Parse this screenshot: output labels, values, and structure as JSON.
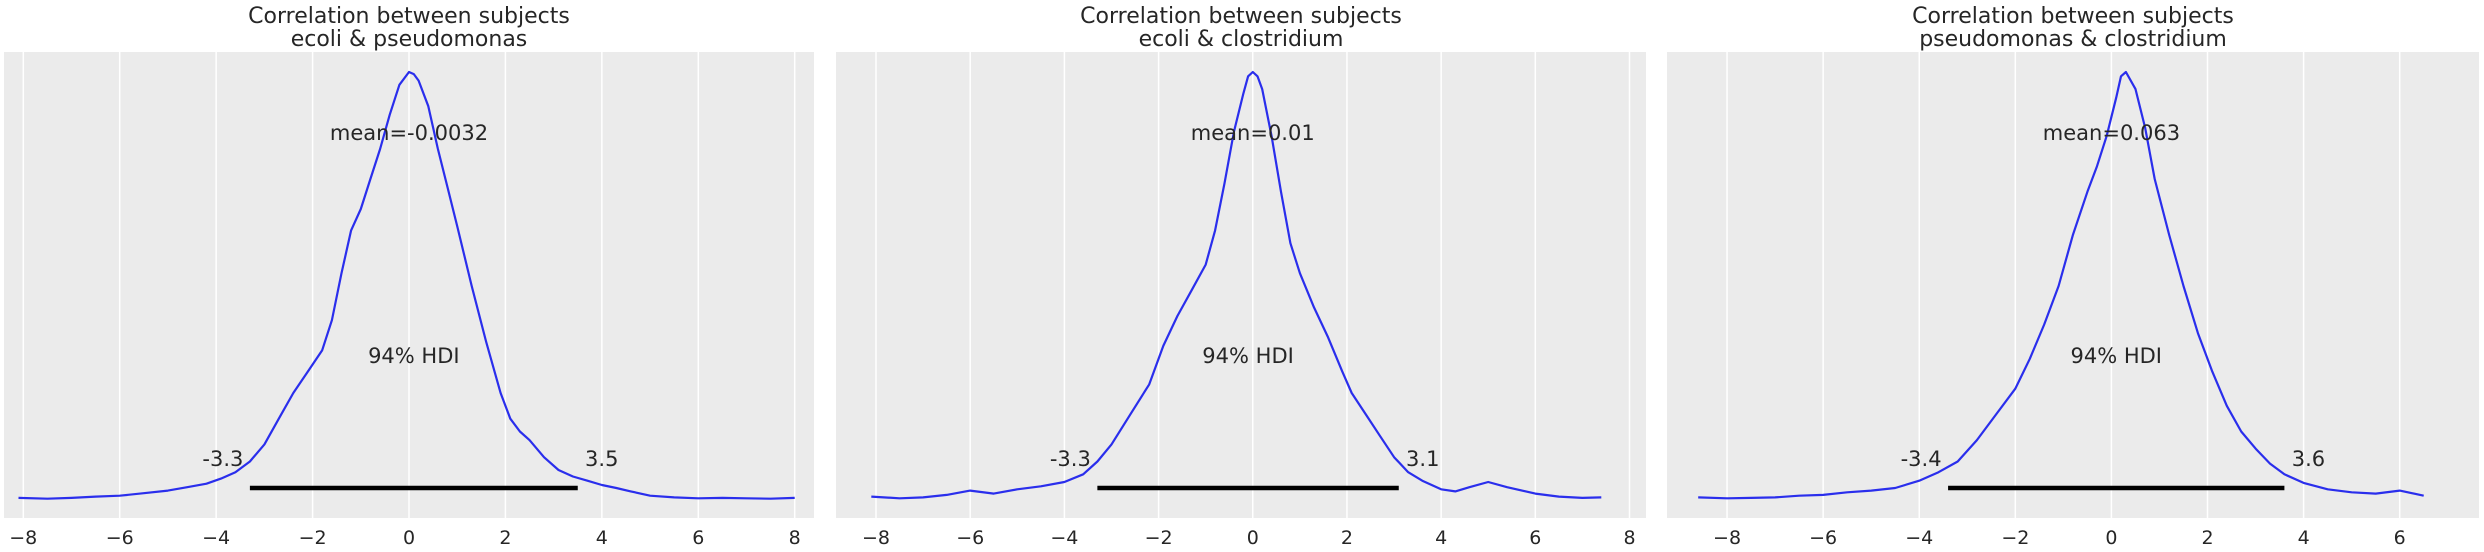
{
  "colors": {
    "line": "#2a2eec",
    "hdi": "#000000",
    "background": "#ebebeb",
    "grid": "#ffffff",
    "text": "#262626"
  },
  "chart_data": [
    {
      "type": "line",
      "title": [
        "Correlation between subjects",
        "ecoli & pseudomonas"
      ],
      "xlim": [
        -8.4,
        8.4
      ],
      "ylim": [
        0,
        1.0
      ],
      "xticks": [
        -8,
        -6,
        -4,
        -2,
        0,
        2,
        4,
        6,
        8
      ],
      "xtick_labels": [
        "−8",
        "−6",
        "−4",
        "−2",
        "0",
        "2",
        "4",
        "6",
        "8"
      ],
      "mean_label": "mean=-0.0032",
      "hdi_label": "94% HDI",
      "hdi": [
        -3.3,
        3.5
      ],
      "hdi_low_label": "-3.3",
      "hdi_high_label": "3.5",
      "x": [
        -8.1,
        -7.5,
        -7.0,
        -6.5,
        -6.0,
        -5.5,
        -5.0,
        -4.6,
        -4.2,
        -3.9,
        -3.6,
        -3.3,
        -3.0,
        -2.7,
        -2.4,
        -2.1,
        -1.8,
        -1.6,
        -1.4,
        -1.2,
        -1.0,
        -0.8,
        -0.6,
        -0.4,
        -0.2,
        0.0,
        0.1,
        0.2,
        0.4,
        0.6,
        0.8,
        1.0,
        1.3,
        1.6,
        1.9,
        2.1,
        2.3,
        2.5,
        2.8,
        3.1,
        3.4,
        3.7,
        4.0,
        4.3,
        4.6,
        5.0,
        5.5,
        6.0,
        6.5,
        7.0,
        7.5,
        8.0
      ],
      "y": [
        0.005,
        0.003,
        0.005,
        0.008,
        0.01,
        0.016,
        0.022,
        0.03,
        0.038,
        0.05,
        0.065,
        0.09,
        0.13,
        0.19,
        0.25,
        0.3,
        0.35,
        0.42,
        0.53,
        0.63,
        0.68,
        0.75,
        0.82,
        0.9,
        0.97,
        1.0,
        0.995,
        0.98,
        0.92,
        0.82,
        0.73,
        0.64,
        0.5,
        0.37,
        0.25,
        0.19,
        0.16,
        0.14,
        0.1,
        0.07,
        0.055,
        0.045,
        0.035,
        0.028,
        0.02,
        0.01,
        0.006,
        0.004,
        0.005,
        0.004,
        0.003,
        0.005
      ]
    },
    {
      "type": "line",
      "title": [
        "Correlation between subjects",
        "ecoli & clostridium"
      ],
      "xlim": [
        -8.85,
        8.35
      ],
      "ylim": [
        0,
        1.0
      ],
      "xticks": [
        -8,
        -6,
        -4,
        -2,
        0,
        2,
        4,
        6,
        8
      ],
      "xtick_labels": [
        "−8",
        "−6",
        "−4",
        "−2",
        "0",
        "2",
        "4",
        "6",
        "8"
      ],
      "mean_label": "mean=0.01",
      "hdi_label": "94% HDI",
      "hdi": [
        -3.3,
        3.1
      ],
      "hdi_low_label": "-3.3",
      "hdi_high_label": "3.1",
      "x": [
        -8.1,
        -7.5,
        -7.0,
        -6.5,
        -6.0,
        -5.5,
        -5.0,
        -4.5,
        -4.0,
        -3.6,
        -3.3,
        -3.0,
        -2.6,
        -2.2,
        -1.9,
        -1.6,
        -1.3,
        -1.0,
        -0.8,
        -0.6,
        -0.4,
        -0.2,
        -0.1,
        0.0,
        0.1,
        0.2,
        0.4,
        0.6,
        0.8,
        1.0,
        1.3,
        1.6,
        1.9,
        2.1,
        2.4,
        2.7,
        3.0,
        3.3,
        3.6,
        4.0,
        4.3,
        4.6,
        5.0,
        5.4,
        6.0,
        6.5,
        7.0,
        7.4
      ],
      "y": [
        0.008,
        0.004,
        0.006,
        0.012,
        0.022,
        0.015,
        0.025,
        0.032,
        0.042,
        0.06,
        0.09,
        0.13,
        0.2,
        0.27,
        0.36,
        0.43,
        0.49,
        0.55,
        0.63,
        0.74,
        0.86,
        0.95,
        0.99,
        1.0,
        0.99,
        0.96,
        0.85,
        0.72,
        0.6,
        0.53,
        0.45,
        0.38,
        0.3,
        0.25,
        0.2,
        0.15,
        0.1,
        0.065,
        0.045,
        0.025,
        0.02,
        0.03,
        0.042,
        0.03,
        0.015,
        0.008,
        0.005,
        0.006
      ]
    },
    {
      "type": "line",
      "title": [
        "Correlation between subjects",
        "pseudomonas & clostridium"
      ],
      "xlim": [
        -9.25,
        7.65
      ],
      "ylim": [
        0,
        1.0
      ],
      "xticks": [
        -8,
        -6,
        -4,
        -2,
        0,
        2,
        4,
        6
      ],
      "xtick_labels": [
        "−8",
        "−6",
        "−4",
        "−2",
        "0",
        "2",
        "4",
        "6"
      ],
      "mean_label": "mean=0.063",
      "hdi_label": "94% HDI",
      "hdi": [
        -3.4,
        3.6
      ],
      "hdi_low_label": "-3.4",
      "hdi_high_label": "3.6",
      "x": [
        -8.6,
        -8.0,
        -7.5,
        -7.0,
        -6.5,
        -6.0,
        -5.5,
        -5.0,
        -4.5,
        -4.0,
        -3.6,
        -3.2,
        -2.8,
        -2.4,
        -2.0,
        -1.7,
        -1.4,
        -1.1,
        -0.8,
        -0.5,
        -0.3,
        -0.1,
        0.1,
        0.2,
        0.3,
        0.5,
        0.7,
        0.9,
        1.2,
        1.5,
        1.8,
        2.1,
        2.4,
        2.7,
        3.0,
        3.3,
        3.6,
        4.0,
        4.5,
        5.0,
        5.5,
        6.0,
        6.5
      ],
      "y": [
        0.006,
        0.004,
        0.005,
        0.006,
        0.01,
        0.012,
        0.018,
        0.022,
        0.028,
        0.045,
        0.065,
        0.09,
        0.14,
        0.2,
        0.26,
        0.33,
        0.41,
        0.5,
        0.62,
        0.72,
        0.78,
        0.85,
        0.94,
        0.99,
        1.0,
        0.96,
        0.87,
        0.75,
        0.62,
        0.5,
        0.39,
        0.3,
        0.22,
        0.16,
        0.12,
        0.085,
        0.06,
        0.04,
        0.025,
        0.018,
        0.015,
        0.022,
        0.01
      ]
    }
  ]
}
